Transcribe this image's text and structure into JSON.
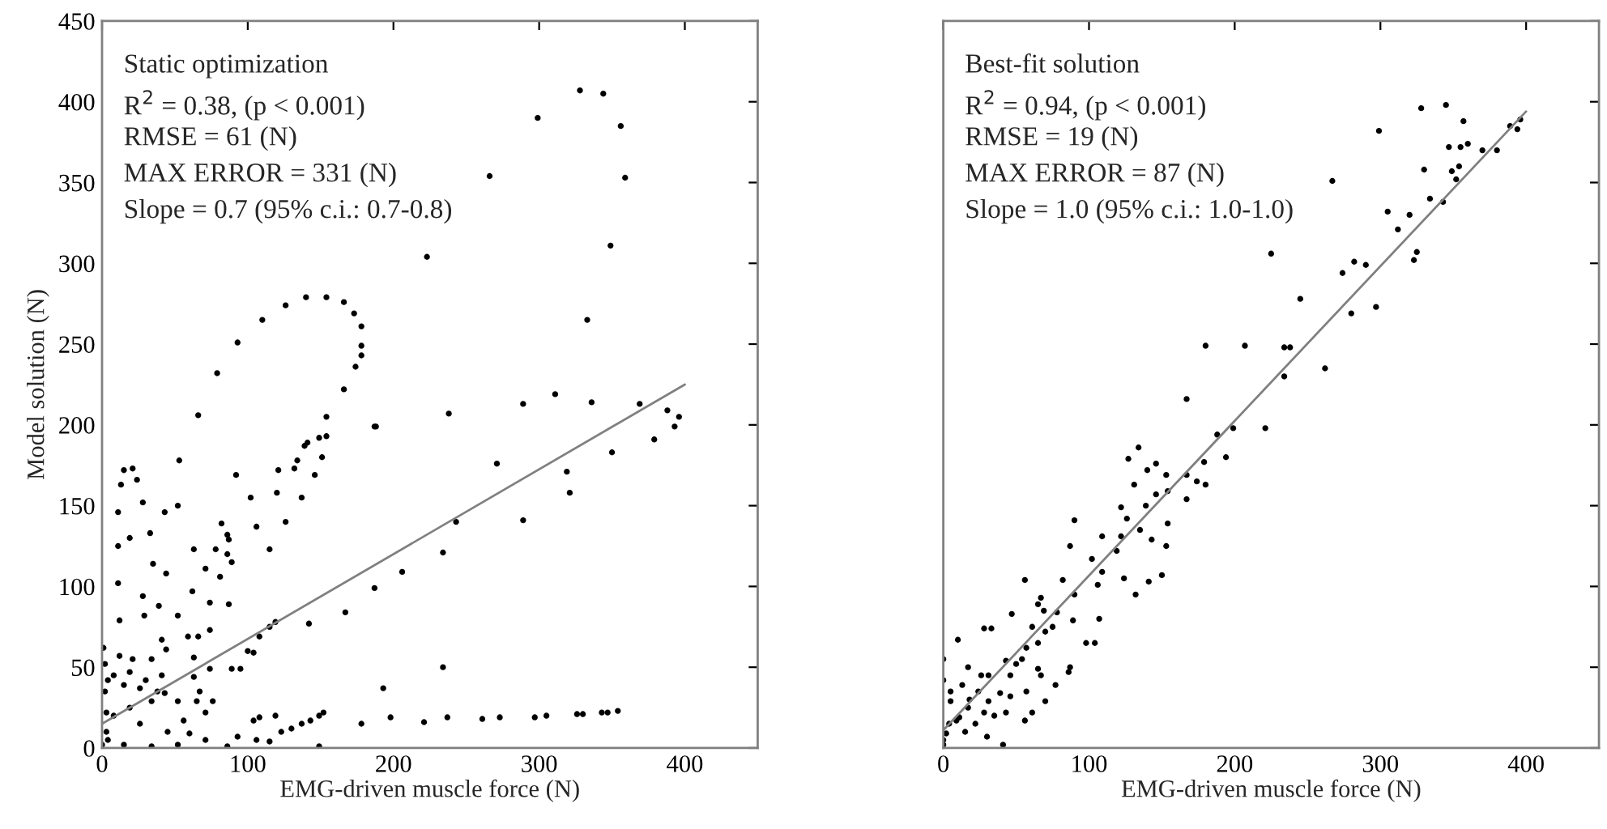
{
  "chart_data": [
    {
      "type": "scatter",
      "xlabel": "EMG-driven muscle force (N)",
      "ylabel": "Model solution (N)",
      "annotations": [
        "Static optimization",
        "R$^{2}$ = 0.38, (p < 0.001)",
        "RMSE = 61 (N)",
        "MAX ERROR = 331 (N)",
        "Slope = 0.7 (95% c.i.: 0.7-0.8)"
      ],
      "xlim": [
        0,
        450
      ],
      "ylim": [
        0,
        450
      ],
      "xticks": [
        0,
        100,
        200,
        300,
        400
      ],
      "yticks": [
        0,
        50,
        100,
        150,
        200,
        250,
        300,
        350,
        400,
        450
      ],
      "grid": false,
      "series": [
        {
          "marker": "circle",
          "color": "#000000",
          "x": [
            328,
            344,
            299,
            356,
            266,
            359,
            349,
            223,
            333,
            110,
            126,
            140,
            154,
            166,
            173,
            178,
            178,
            178,
            174,
            166,
            93,
            79,
            66,
            154,
            188,
            238,
            289,
            311,
            336,
            369,
            388,
            396,
            393,
            187,
            379,
            350,
            271,
            319,
            321,
            243,
            289,
            234,
            206,
            187,
            167,
            142,
            119,
            115,
            108,
            104,
            234,
            193,
            198,
            221,
            237,
            261,
            273,
            297,
            305,
            326,
            330,
            343,
            347,
            354,
            178,
            15,
            21,
            13,
            24,
            11,
            28,
            11,
            19,
            33,
            11,
            12,
            28,
            29,
            35,
            44,
            39,
            43,
            53,
            52,
            92,
            102,
            106,
            115,
            120,
            121,
            126,
            132,
            134,
            139,
            141,
            149,
            154,
            151,
            146,
            137,
            82,
            86,
            87,
            78,
            86,
            89,
            81,
            71,
            63,
            62,
            74,
            87,
            74,
            66,
            59,
            52,
            41,
            44,
            63,
            34,
            21,
            12,
            4,
            15,
            26,
            38,
            43,
            34,
            19,
            8,
            26,
            45,
            60,
            71,
            86,
            4,
            0,
            15,
            34,
            52,
            63,
            67,
            65,
            71,
            74,
            76,
            52,
            56,
            104,
            108,
            119,
            123,
            130,
            137,
            143,
            149,
            152,
            106,
            115,
            149,
            93,
            89,
            95,
            100,
            1,
            2,
            2,
            3,
            3,
            8,
            19,
            30,
            41
          ],
          "values": [
            407,
            405,
            390,
            385,
            354,
            353,
            311,
            304,
            265,
            265,
            274,
            279,
            279,
            276,
            269,
            261,
            249,
            243,
            236,
            222,
            251,
            232,
            206,
            205,
            199,
            207,
            213,
            219,
            214,
            213,
            209,
            205,
            199,
            199,
            191,
            183,
            176,
            171,
            158,
            140,
            141,
            121,
            109,
            99,
            84,
            77,
            78,
            75,
            69,
            59,
            50,
            37,
            19,
            16,
            19,
            18,
            19,
            19,
            20,
            21,
            21,
            22,
            22,
            23,
            15,
            172,
            173,
            163,
            166,
            146,
            152,
            125,
            130,
            133,
            102,
            79,
            94,
            82,
            114,
            108,
            88,
            146,
            178,
            150,
            169,
            155,
            137,
            123,
            158,
            172,
            140,
            173,
            178,
            187,
            189,
            192,
            193,
            180,
            169,
            155,
            139,
            132,
            129,
            123,
            120,
            115,
            106,
            111,
            123,
            97,
            90,
            89,
            73,
            69,
            69,
            82,
            67,
            61,
            56,
            55,
            55,
            57,
            42,
            39,
            37,
            35,
            34,
            29,
            25,
            20,
            15,
            10,
            9,
            5,
            1,
            5,
            2,
            2,
            1,
            2,
            44,
            35,
            29,
            22,
            49,
            29,
            29,
            17,
            17,
            19,
            20,
            10,
            12,
            15,
            17,
            20,
            22,
            5,
            4,
            1,
            7,
            49,
            49,
            60,
            62,
            52,
            35,
            22,
            10,
            45,
            47,
            42,
            45
          ]
        },
        {
          "type": "line",
          "color": "#808080",
          "x": [
            0,
            400
          ],
          "values": [
            15,
            225
          ]
        }
      ]
    },
    {
      "type": "scatter",
      "xlabel": "EMG-driven muscle force (N)",
      "annotations": [
        "Best-fit solution",
        "R$^{2}$ = 0.94, (p < 0.001)",
        "RMSE = 19 (N)",
        "MAX ERROR = 87 (N)",
        "Slope = 1.0 (95% c.i.: 1.0-1.0)"
      ],
      "xlim": [
        0,
        450
      ],
      "ylim": [
        0,
        450
      ],
      "xticks": [
        0,
        100,
        200,
        300,
        400
      ],
      "yticks": [
        0,
        50,
        100,
        150,
        200,
        250,
        300,
        350,
        400,
        450
      ],
      "tick_labels": "x",
      "grid": false,
      "series": [
        {
          "marker": "circle",
          "color": "#000000",
          "x": [
            328,
            345,
            357,
            299,
            389,
            396,
            394,
            347,
            355,
            360,
            370,
            380,
            330,
            349,
            354,
            352,
            267,
            334,
            343,
            305,
            320,
            312,
            225,
            282,
            290,
            274,
            325,
            323,
            245,
            280,
            297,
            180,
            207,
            234,
            238,
            234,
            262,
            167,
            188,
            199,
            221,
            134,
            127,
            194,
            179,
            140,
            146,
            153,
            174,
            180,
            131,
            167,
            154,
            146,
            167,
            139,
            122,
            126,
            90,
            154,
            135,
            122,
            109,
            143,
            153,
            87,
            102,
            119,
            109,
            124,
            141,
            150,
            132,
            56,
            82,
            106,
            90,
            67,
            65,
            69,
            78,
            89,
            107,
            47,
            61,
            70,
            75,
            65,
            57,
            98,
            104,
            10,
            28,
            33,
            43,
            50,
            17,
            31,
            46,
            54,
            67,
            87,
            86,
            77,
            70,
            61,
            56,
            43,
            31,
            24,
            17,
            9,
            2,
            0,
            41,
            30,
            5,
            0,
            0,
            11,
            22,
            35,
            39,
            26,
            5,
            13,
            18,
            46,
            57,
            65,
            28,
            4,
            15,
            0
          ],
          "values": [
            396,
            398,
            388,
            382,
            385,
            389,
            383,
            372,
            372,
            374,
            370,
            370,
            358,
            357,
            360,
            352,
            351,
            340,
            338,
            332,
            330,
            321,
            306,
            301,
            299,
            294,
            307,
            302,
            278,
            269,
            273,
            249,
            249,
            248,
            248,
            230,
            235,
            216,
            194,
            198,
            198,
            186,
            179,
            180,
            177,
            172,
            176,
            169,
            165,
            163,
            163,
            169,
            159,
            157,
            154,
            150,
            149,
            142,
            141,
            139,
            135,
            131,
            131,
            129,
            125,
            125,
            117,
            122,
            109,
            105,
            103,
            107,
            95,
            104,
            104,
            101,
            95,
            93,
            89,
            85,
            84,
            79,
            80,
            83,
            75,
            72,
            75,
            65,
            62,
            65,
            65,
            67,
            74,
            74,
            54,
            52,
            50,
            45,
            45,
            55,
            45,
            50,
            47,
            39,
            29,
            22,
            17,
            22,
            29,
            35,
            25,
            17,
            9,
            2,
            2,
            7,
            29,
            42,
            55,
            19,
            15,
            20,
            34,
            45,
            35,
            39,
            30,
            32,
            35,
            49,
            22,
            15,
            10,
            5
          ]
        },
        {
          "type": "line",
          "color": "#808080",
          "x": [
            0,
            400
          ],
          "values": [
            11,
            394
          ]
        }
      ]
    }
  ]
}
